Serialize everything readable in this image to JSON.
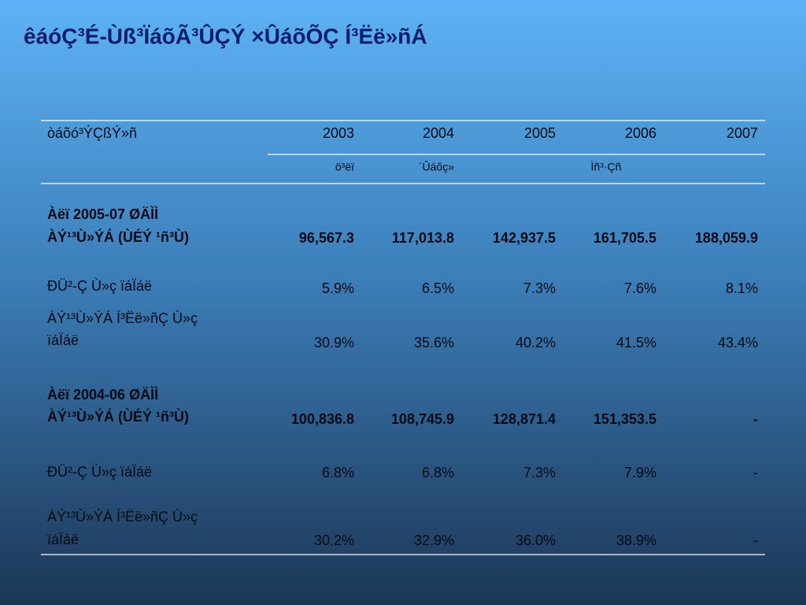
{
  "title": "êáóÇ³É-Ùß³ÏáõÃ³ÛÇÝ ×ÛáõÕÇ Í³Ëë»ñÁ",
  "table": {
    "header": [
      "òáõó³ÝÇßÝ»ñ",
      "2003",
      "2004",
      "2005",
      "2006",
      "2007"
    ],
    "subheader": [
      "ö³ëï",
      "´Ûáõç»",
      "Ìñ³·Çñ"
    ],
    "rows": [
      {
        "label": [
          "Àëï 2005-07 ØÄÌÌ",
          "ÀÝ¹³Ù»ÝÁ (ÙÉÝ ¹ñ³Ù)"
        ],
        "bold": true,
        "values": [
          "96,567.3",
          "117,013.8",
          "142,937.5",
          "161,705.5",
          "188,059.9"
        ]
      },
      {
        "label": [
          "ÐÜ²-Ç Ù»ç ïáÏáë"
        ],
        "bold": false,
        "values": [
          "5.9%",
          "6.5%",
          "7.3%",
          "7.6%",
          "8.1%"
        ]
      },
      {
        "label": [
          "ÀÝ¹³Ù»ÝÁ Í³Ëë»ñÇ Ù»ç",
          "ïáÏáë"
        ],
        "bold": false,
        "values": [
          "30.9%",
          "35.6%",
          "40.2%",
          "41.5%",
          "43.4%"
        ]
      },
      {
        "label": [
          "Àëï 2004-06 ØÄÌÌ",
          "ÀÝ¹³Ù»ÝÁ (ÙÉÝ ¹ñ³Ù)"
        ],
        "bold": true,
        "values": [
          "100,836.8",
          "108,745.9",
          "128,871.4",
          "151,353.5",
          "-"
        ]
      },
      {
        "label": [
          "ÐÜ²-Ç Ù»ç ïáÏáë"
        ],
        "bold": false,
        "values": [
          "6.8%",
          "6.8%",
          "7.3%",
          "7.9%",
          "-"
        ]
      },
      {
        "label": [
          "ÀÝ¹³Ù»ÝÁ Í³Ëë»ñÇ Ù»ç",
          "ïáÏáë"
        ],
        "bold": false,
        "values": [
          "30.2%",
          "32.9%",
          "36.0%",
          "38.9%",
          "-"
        ]
      }
    ]
  }
}
